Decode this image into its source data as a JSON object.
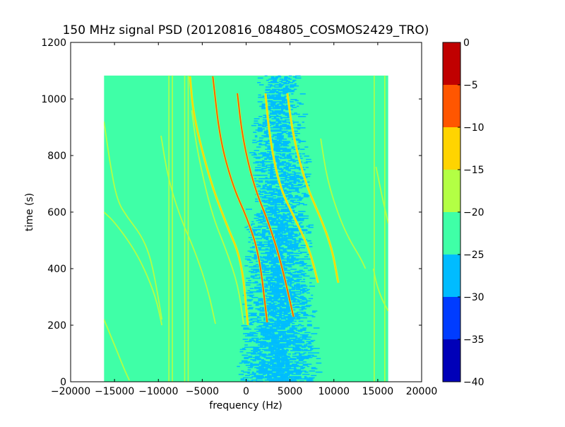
{
  "chart_data": {
    "type": "heatmap",
    "title": "150 MHz signal PSD (20120816_084805_COSMOS2429_TRO)",
    "xlabel": "frequency (Hz)",
    "ylabel": "time (s)",
    "xlim": [
      -20000,
      20000
    ],
    "ylim": [
      0,
      1200
    ],
    "x_ticks": [
      -20000,
      -15000,
      -10000,
      -5000,
      0,
      5000,
      10000,
      15000,
      20000
    ],
    "x_tick_labels": [
      "−20000",
      "−15000",
      "−10000",
      "−5000",
      "0",
      "5000",
      "10000",
      "15000",
      "20000"
    ],
    "y_ticks": [
      0,
      200,
      400,
      600,
      800,
      1000,
      1200
    ],
    "y_tick_labels": [
      "0",
      "200",
      "400",
      "600",
      "800",
      "1000",
      "1200"
    ],
    "data_extent": {
      "x": [
        -16200,
        16200
      ],
      "y": [
        0,
        1083
      ]
    },
    "background_level": -22.5,
    "noise_region": {
      "x_center": 3500,
      "x_halfwidth": 3500,
      "level": -27.5
    },
    "colorbar": {
      "levels": [
        -40,
        -35,
        -30,
        -25,
        -20,
        -15,
        -10,
        -5,
        0
      ],
      "tick_labels": [
        "−40",
        "−35",
        "−30",
        "−25",
        "−20",
        "−15",
        "−10",
        "−5",
        "0"
      ],
      "colors": [
        "#0000b8",
        "#003cff",
        "#00bcff",
        "#3fffa7",
        "#b3ff44",
        "#ffd400",
        "#ff5600",
        "#c00000"
      ]
    },
    "vertical_lines": [
      {
        "x": -8800,
        "y": [
          0,
          1083
        ],
        "level": -17.5
      },
      {
        "x": -8400,
        "y": [
          0,
          1083
        ],
        "level": -17.5
      },
      {
        "x": -7000,
        "y": [
          0,
          1083
        ],
        "level": -17.5
      },
      {
        "x": -6600,
        "y": [
          0,
          1083
        ],
        "level": -17.5
      },
      {
        "x": 14600,
        "y": [
          0,
          1083
        ],
        "level": -17.5
      },
      {
        "x": 15800,
        "y": [
          0,
          1083
        ],
        "level": -17.5
      }
    ],
    "tracks": [
      {
        "x": [
          -16200,
          -15400,
          -14600,
          -13900,
          -13300
        ],
        "y": [
          220,
          160,
          100,
          45,
          5
        ],
        "level": -17.5
      },
      {
        "x": [
          -16200,
          -15000,
          -13000,
          -11600,
          -10300,
          -9600
        ],
        "y": [
          600,
          565,
          480,
          400,
          300,
          200
        ],
        "level": -17.5
      },
      {
        "x": [
          -16200,
          -15500,
          -14700,
          -13500,
          -12000,
          -11000,
          -10300,
          -9600
        ],
        "y": [
          920,
          770,
          640,
          580,
          520,
          450,
          350,
          220
        ],
        "level": -17.5
      },
      {
        "x": [
          -9700,
          -8900,
          -7500,
          -5800,
          -4300,
          -3500
        ],
        "y": [
          870,
          720,
          580,
          460,
          320,
          205
        ],
        "level": -17.5
      },
      {
        "x": [
          -6200,
          -5600,
          -4000,
          -2200,
          -900,
          -300
        ],
        "y": [
          960,
          820,
          600,
          460,
          340,
          205
        ],
        "level": -17.5
      },
      {
        "x": [
          -6400,
          -6000,
          -4200,
          -2300,
          -500,
          200
        ],
        "y": [
          1080,
          940,
          720,
          560,
          430,
          200
        ],
        "level": -12.5
      },
      {
        "x": [
          -3800,
          -3000,
          -1500,
          100,
          1500,
          2400
        ],
        "y": [
          1080,
          860,
          690,
          580,
          450,
          210
        ],
        "level": -7.5
      },
      {
        "x": [
          -1000,
          -400,
          900,
          2600,
          4000,
          5400
        ],
        "y": [
          1020,
          860,
          690,
          560,
          420,
          230
        ],
        "level": -7.5
      },
      {
        "x": [
          2200,
          2700,
          3800,
          5500,
          7200,
          8200
        ],
        "y": [
          1020,
          860,
          690,
          580,
          470,
          350
        ],
        "level": -12.5
      },
      {
        "x": [
          4700,
          5400,
          6900,
          8500,
          9800,
          10500
        ],
        "y": [
          1020,
          860,
          690,
          580,
          470,
          350
        ],
        "level": -12.5
      },
      {
        "x": [
          8500,
          9200,
          10500,
          11800,
          13000,
          13600
        ],
        "y": [
          860,
          720,
          590,
          500,
          440,
          400
        ],
        "level": -17.5
      },
      {
        "x": [
          14800,
          15200,
          15600,
          16200
        ],
        "y": [
          760,
          700,
          640,
          560
        ],
        "level": -17.5
      },
      {
        "x": [
          14500,
          14900,
          15500,
          16200
        ],
        "y": [
          400,
          340,
          290,
          250
        ],
        "level": -17.5
      }
    ]
  }
}
